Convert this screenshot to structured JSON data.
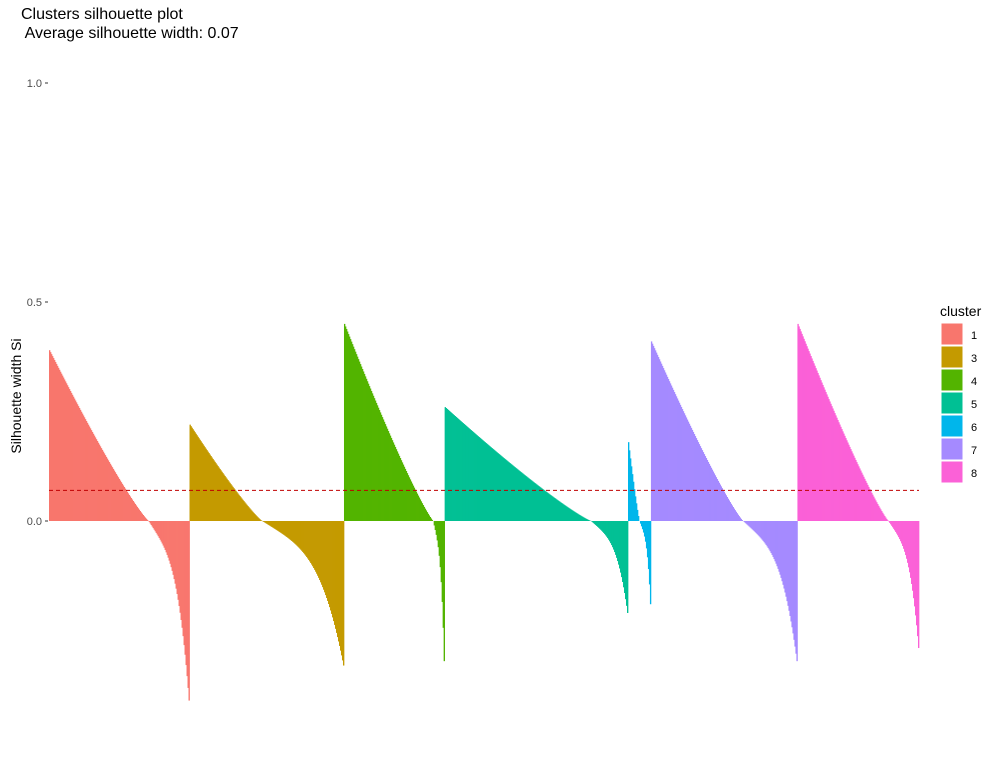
{
  "chart_data": {
    "type": "bar",
    "title_line1": "Clusters silhouette plot",
    "title_line2": " Average silhouette width: 0.07",
    "xlabel": "",
    "ylabel": "Silhouette width Si",
    "ylim": [
      -0.42,
      1.0
    ],
    "yticks": [
      {
        "value": 1.0,
        "label": "1.0"
      },
      {
        "value": 0.5,
        "label": "0.5"
      },
      {
        "value": 0.0,
        "label": "0.0"
      }
    ],
    "grid": false,
    "average_line": {
      "value": 0.07,
      "color": "#C00000",
      "style": "dashed"
    },
    "legend": {
      "title": "cluster",
      "position": "right"
    },
    "series": [
      {
        "name": "1",
        "color": "#F8766D",
        "count": 141,
        "max": 0.39,
        "min": -0.41,
        "zero_at": 0.71
      },
      {
        "name": "3",
        "color": "#C49A00",
        "count": 155,
        "max": 0.22,
        "min": -0.33,
        "zero_at": 0.47
      },
      {
        "name": "4",
        "color": "#53B400",
        "count": 101,
        "max": 0.45,
        "min": -0.32,
        "zero_at": 0.89
      },
      {
        "name": "5",
        "color": "#00C094",
        "count": 184,
        "max": 0.26,
        "min": -0.21,
        "zero_at": 0.8
      },
      {
        "name": "6",
        "color": "#00B6EB",
        "count": 23,
        "max": 0.18,
        "min": -0.19,
        "zero_at": 0.5
      },
      {
        "name": "7",
        "color": "#A58AFF",
        "count": 147,
        "max": 0.41,
        "min": -0.32,
        "zero_at": 0.63
      },
      {
        "name": "8",
        "color": "#FB61D7",
        "count": 122,
        "max": 0.45,
        "min": -0.29,
        "zero_at": 0.75
      }
    ]
  }
}
